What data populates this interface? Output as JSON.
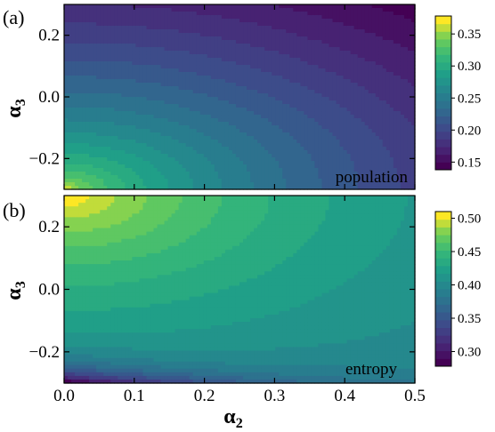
{
  "chart_data": [
    {
      "type": "heatmap",
      "panel_label": "(a)",
      "annotation": "population",
      "xlim": [
        0.0,
        0.5
      ],
      "ylim": [
        -0.3,
        0.3
      ],
      "x_ticks": [],
      "y_ticks": [
        {
          "value": 0.2,
          "label": "0.2"
        },
        {
          "value": 0.0,
          "label": "0.0"
        },
        {
          "value": -0.2,
          "label": "−0.2"
        }
      ],
      "ylabel": "α",
      "ylabel_sub": "3",
      "colorscale": "viridis",
      "color_range": [
        0.138,
        0.378
      ],
      "colorbar_ticks": [
        {
          "value": 0.35,
          "label": "0.35"
        },
        {
          "value": 0.3,
          "label": "0.30"
        },
        {
          "value": 0.25,
          "label": "0.25"
        },
        {
          "value": 0.2,
          "label": "0.20"
        },
        {
          "value": 0.15,
          "label": "0.15"
        }
      ],
      "levels": 20,
      "corner_values": {
        "x0_yneg": 0.378,
        "x0_ypos": 0.205,
        "x05_yneg": 0.195,
        "x05_ypos": 0.138
      },
      "field": {
        "type": "radial",
        "center": [
          0.0,
          -0.3
        ],
        "rmax": 0.8,
        "vmin": 0.14,
        "vmax": 0.375,
        "power": 0.55
      }
    },
    {
      "type": "heatmap",
      "panel_label": "(b)",
      "annotation": "entropy",
      "xlim": [
        0.0,
        0.5
      ],
      "ylim": [
        -0.3,
        0.3
      ],
      "x_ticks": [
        {
          "value": 0.0,
          "label": "0.0"
        },
        {
          "value": 0.1,
          "label": "0.1"
        },
        {
          "value": 0.2,
          "label": "0.2"
        },
        {
          "value": 0.3,
          "label": "0.3"
        },
        {
          "value": 0.4,
          "label": "0.4"
        },
        {
          "value": 0.5,
          "label": "0.5"
        }
      ],
      "y_ticks": [
        {
          "value": 0.2,
          "label": "0.2"
        },
        {
          "value": 0.0,
          "label": "0.0"
        },
        {
          "value": -0.2,
          "label": "−0.2"
        }
      ],
      "xlabel": "α",
      "xlabel_sub": "2",
      "ylabel": "α",
      "ylabel_sub": "3",
      "colorscale": "viridis",
      "color_range": [
        0.278,
        0.51
      ],
      "colorbar_ticks": [
        {
          "value": 0.5,
          "label": "0.50"
        },
        {
          "value": 0.45,
          "label": "0.45"
        },
        {
          "value": 0.4,
          "label": "0.40"
        },
        {
          "value": 0.35,
          "label": "0.35"
        },
        {
          "value": 0.3,
          "label": "0.30"
        }
      ],
      "levels": 20,
      "corner_values": {
        "x0_ypos": 0.51,
        "x0_yneg": 0.28,
        "x05_ypos": 0.39,
        "x05_yneg": 0.385
      },
      "field": {
        "type": "entropy",
        "center": [
          0.0,
          0.3
        ],
        "rmax": 0.7,
        "outer": 0.385,
        "vmax": 0.51,
        "vmin": 0.28,
        "radial_decay": 0.36,
        "dip_width": 0.05,
        "dip_depth": 0.14
      }
    }
  ]
}
